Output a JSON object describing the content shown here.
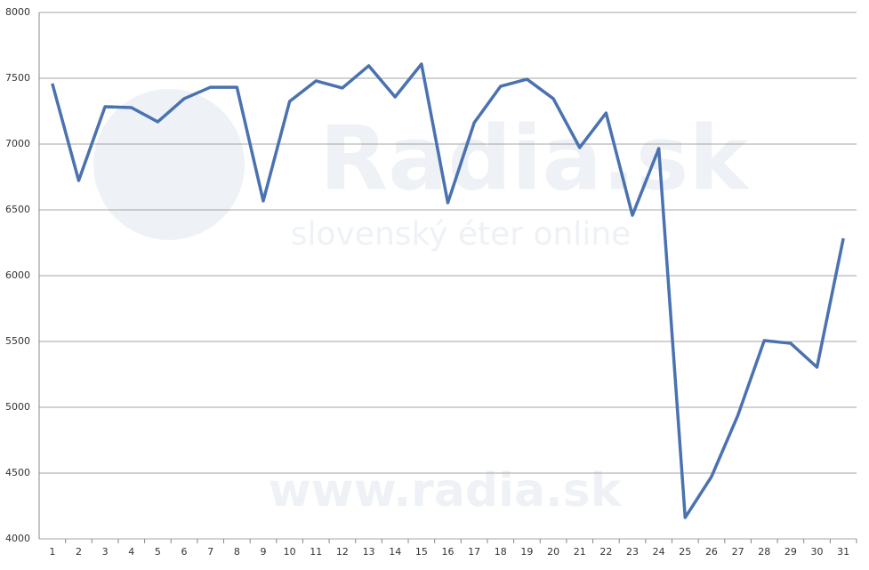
{
  "chart_data": {
    "type": "line",
    "categories": [
      "1",
      "2",
      "3",
      "4",
      "5",
      "6",
      "7",
      "8",
      "9",
      "10",
      "11",
      "12",
      "13",
      "14",
      "15",
      "16",
      "17",
      "18",
      "19",
      "20",
      "21",
      "22",
      "23",
      "24",
      "25",
      "26",
      "27",
      "28",
      "29",
      "30",
      "31"
    ],
    "values": [
      7460,
      6723,
      7284,
      7277,
      7169,
      7345,
      7432,
      7432,
      6568,
      7324,
      7480,
      7426,
      7595,
      7358,
      7608,
      6554,
      7162,
      7439,
      7493,
      7345,
      6973,
      7236,
      6459,
      6966,
      4162,
      4473,
      4939,
      5507,
      5486,
      5304,
      6284
    ],
    "color": "#4a72b0",
    "ylim": [
      4000,
      8000
    ],
    "yticks": [
      4000,
      4500,
      5000,
      5500,
      6000,
      6500,
      7000,
      7500,
      8000
    ],
    "grid": true,
    "watermark": [
      "Radia.sk",
      "slovenský éter online",
      "www.radia.sk"
    ]
  }
}
